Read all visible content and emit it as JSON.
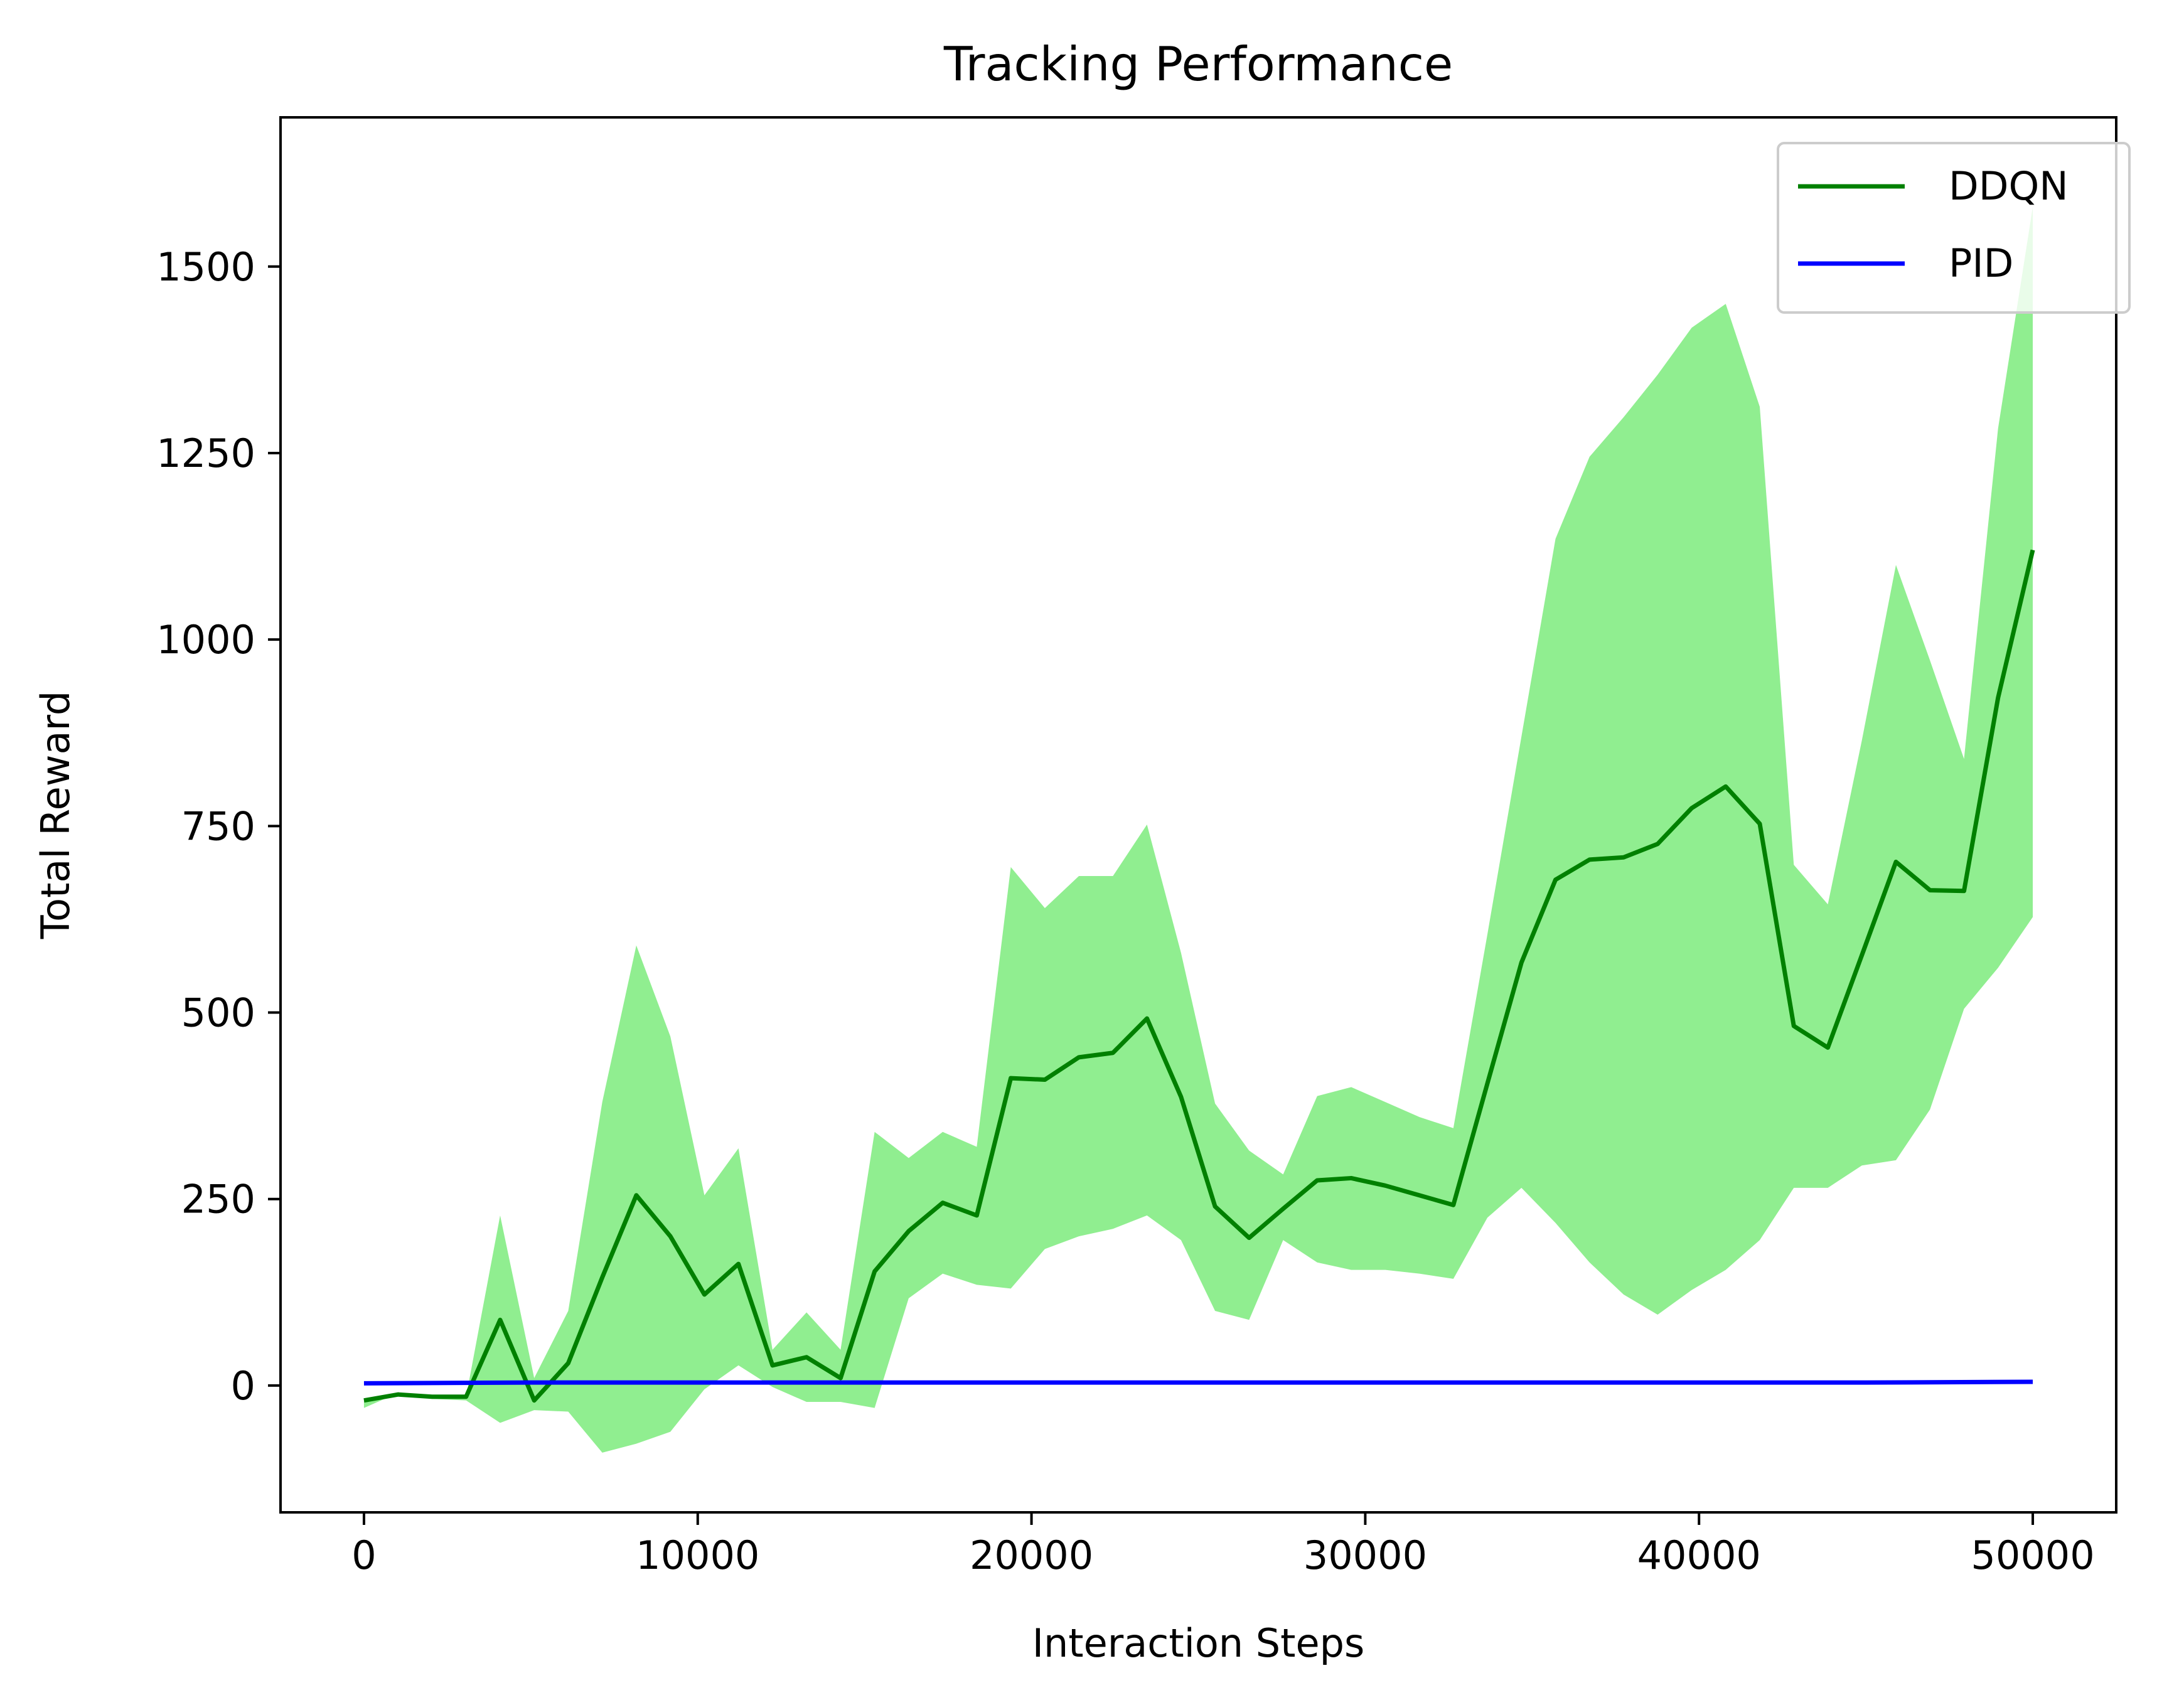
{
  "chart_data": {
    "type": "line",
    "title": "Tracking Performance",
    "xlabel": "Interaction Steps",
    "ylabel": "Total Reward",
    "xlim": [
      -2500,
      52500
    ],
    "ylim": [
      -170,
      1700
    ],
    "xticks": [
      0,
      10000,
      20000,
      30000,
      40000,
      50000
    ],
    "xtick_labels": [
      "0",
      "10000",
      "20000",
      "30000",
      "40000",
      "50000"
    ],
    "yticks": [
      0,
      250,
      500,
      750,
      1000,
      1250,
      1500
    ],
    "ytick_labels": [
      "0",
      "250",
      "500",
      "750",
      "1000",
      "1250",
      "1500"
    ],
    "grid": false,
    "legend_position": "upper-right",
    "colors": {
      "ddqn_line": "#008000",
      "ddqn_band": "#90ee90",
      "pid_line": "#0000ff"
    },
    "series": [
      {
        "name": "DDQN",
        "x": [
          0,
          1020,
          2040,
          3060,
          4080,
          5100,
          6120,
          7140,
          8160,
          9180,
          10200,
          11220,
          12240,
          13260,
          14280,
          15300,
          16320,
          17340,
          18360,
          19380,
          20400,
          21420,
          22440,
          23460,
          24480,
          25500,
          26520,
          27540,
          28560,
          29580,
          30600,
          31620,
          32640,
          33660,
          34680,
          35700,
          36720,
          37740,
          38760,
          39780,
          40800,
          41820,
          42840,
          43860,
          44880,
          45900,
          46920,
          47940,
          48960,
          50000
        ],
        "y": [
          -20,
          -12,
          -15,
          -15,
          88,
          -20,
          30,
          145,
          255,
          200,
          122,
          163,
          27,
          38,
          10,
          153,
          207,
          245,
          228,
          412,
          410,
          440,
          446,
          492,
          387,
          240,
          198,
          237,
          275,
          278,
          268,
          255,
          242,
          405,
          567,
          678,
          705,
          708,
          726,
          774,
          803,
          753,
          482,
          453,
          577,
          702,
          664,
          663,
          922,
          1120
        ],
        "lower": [
          -30,
          -10,
          -18,
          -20,
          -50,
          -33,
          -35,
          -90,
          -78,
          -62,
          -5,
          27,
          -2,
          -22,
          -22,
          -30,
          117,
          150,
          135,
          130,
          183,
          200,
          210,
          228,
          195,
          100,
          88,
          195,
          165,
          155,
          155,
          150,
          143,
          225,
          265,
          218,
          165,
          122,
          95,
          128,
          155,
          195,
          265,
          265,
          295,
          302,
          370,
          505,
          560,
          628
        ],
        "upper": [
          -20,
          -10,
          -15,
          -15,
          228,
          10,
          100,
          380,
          590,
          468,
          255,
          318,
          48,
          98,
          48,
          340,
          305,
          340,
          320,
          695,
          640,
          683,
          683,
          752,
          580,
          378,
          315,
          283,
          388,
          400,
          380,
          360,
          345,
          605,
          870,
          1135,
          1245,
          1298,
          1355,
          1418,
          1450,
          1312,
          698,
          645,
          865,
          1100,
          972,
          840,
          1283,
          1580
        ]
      },
      {
        "name": "PID",
        "x": [
          0,
          5000,
          10000,
          15000,
          20000,
          25000,
          30000,
          35000,
          40000,
          45000,
          50000
        ],
        "y": [
          3,
          4,
          4,
          4,
          4,
          4,
          4,
          4,
          4,
          4,
          5
        ]
      }
    ]
  }
}
